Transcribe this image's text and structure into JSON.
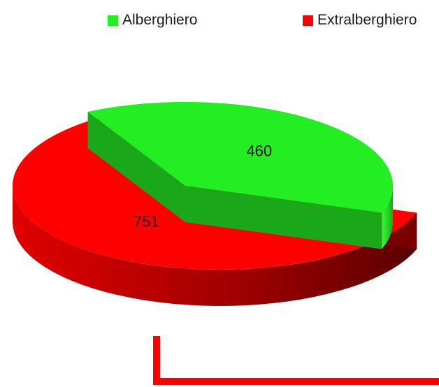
{
  "chart_data": {
    "type": "pie",
    "style": "3d-exploded",
    "legend_position": "top",
    "categories": [
      "Alberghiero",
      "Extralberghiero"
    ],
    "values": [
      460,
      751
    ],
    "data_labels": [
      "460",
      "751"
    ],
    "colors": [
      "#22ee22",
      "#ff0000"
    ]
  }
}
